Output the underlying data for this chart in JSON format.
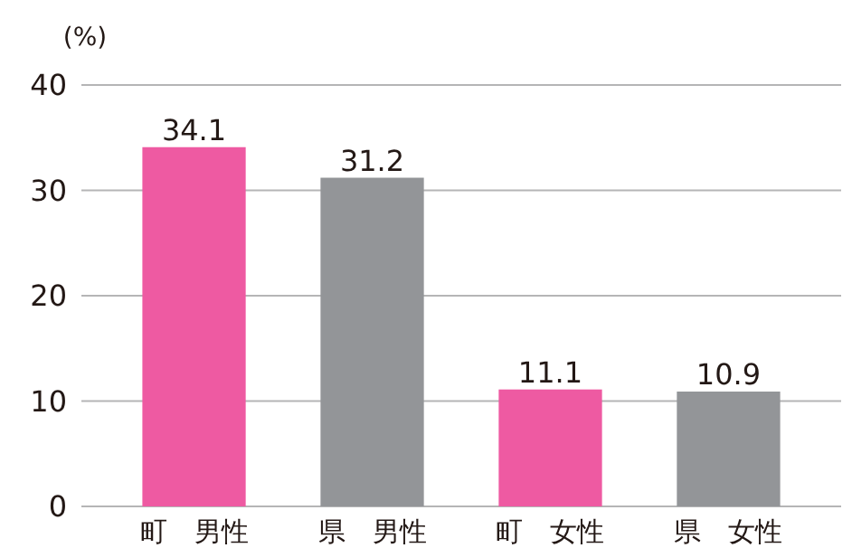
{
  "chart_data": {
    "type": "bar",
    "ylabel": "(%)",
    "categories": [
      "町　男性",
      "県　男性",
      "町　女性",
      "県　女性"
    ],
    "values": [
      34.1,
      31.2,
      11.1,
      10.9
    ],
    "colors": [
      "#ee5aa2",
      "#939598",
      "#ee5aa2",
      "#939598"
    ],
    "ylim": [
      0,
      40
    ],
    "yticks": [
      0,
      10,
      20,
      30,
      40
    ],
    "grid": "y",
    "data_labels": true
  }
}
